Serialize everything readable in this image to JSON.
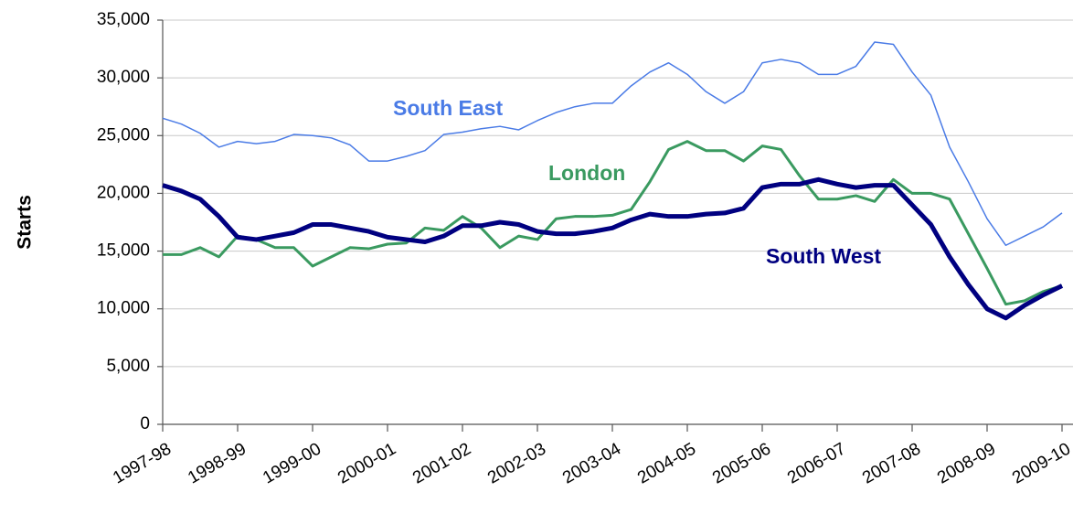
{
  "chart_data": {
    "type": "line",
    "y_label": "Starts",
    "categories": [
      "1997-98",
      null,
      null,
      null,
      "1998-99",
      null,
      null,
      null,
      "1999-00",
      null,
      null,
      null,
      "2000-01",
      null,
      null,
      null,
      "2001-02",
      null,
      null,
      null,
      "2002-03",
      null,
      null,
      null,
      "2003-04",
      null,
      null,
      null,
      "2004-05",
      null,
      null,
      null,
      "2005-06",
      null,
      null,
      null,
      "2006-07",
      null,
      null,
      null,
      "2007-08",
      null,
      null,
      null,
      "2008-09",
      null,
      null,
      null,
      "2009-10"
    ],
    "series": [
      {
        "name": "South East",
        "color": "#4a7be6",
        "width": 1.5,
        "values": [
          26500,
          26000,
          25200,
          24000,
          24500,
          24300,
          24500,
          25100,
          25000,
          24800,
          24200,
          22800,
          22800,
          23200,
          23700,
          25100,
          25300,
          25600,
          25800,
          25500,
          26300,
          27000,
          27500,
          27800,
          27800,
          29300,
          30500,
          31300,
          30300,
          28800,
          27800,
          28800,
          31300,
          31600,
          31300,
          30300,
          30300,
          31000,
          33100,
          32900,
          30500,
          28500,
          24000,
          21000,
          17800,
          15500,
          16300,
          17100,
          18300
        ]
      },
      {
        "name": "London",
        "color": "#3a9a60",
        "width": 3,
        "values": [
          14700,
          14700,
          15300,
          14500,
          16300,
          16000,
          15300,
          15300,
          13700,
          14500,
          15300,
          15200,
          15600,
          15700,
          17000,
          16800,
          18000,
          17000,
          15300,
          16300,
          16000,
          17800,
          18000,
          18000,
          18100,
          18600,
          21000,
          23800,
          24500,
          23700,
          23700,
          22800,
          24100,
          23800,
          21500,
          19500,
          19500,
          19800,
          19300,
          21200,
          20000,
          20000,
          19500,
          16500,
          13500,
          10400,
          10700,
          11500,
          12000
        ]
      },
      {
        "name": "South West",
        "color": "#000080",
        "width": 5,
        "values": [
          20700,
          20200,
          19500,
          18000,
          16200,
          16000,
          16300,
          16600,
          17300,
          17300,
          17000,
          16700,
          16200,
          16000,
          15800,
          16300,
          17200,
          17200,
          17500,
          17300,
          16700,
          16500,
          16500,
          16700,
          17000,
          17700,
          18200,
          18000,
          18000,
          18200,
          18300,
          18700,
          20500,
          20800,
          20800,
          21200,
          20800,
          20500,
          20700,
          20700,
          19000,
          17300,
          14500,
          12100,
          10000,
          9200,
          10300,
          11200,
          12000
        ]
      }
    ],
    "ylim": [
      0,
      35000
    ],
    "yticks": [
      0,
      {
        "value": 5000,
        "label": "5,000"
      },
      {
        "value": 10000,
        "label": "10,000"
      },
      {
        "value": 15000,
        "label": "15,000"
      },
      {
        "value": 20000,
        "label": "20,000"
      },
      {
        "value": 25000,
        "label": "25,000"
      },
      {
        "value": 30000,
        "label": "30,000"
      },
      {
        "value": 35000,
        "label": "35,000"
      }
    ],
    "grid": true
  }
}
